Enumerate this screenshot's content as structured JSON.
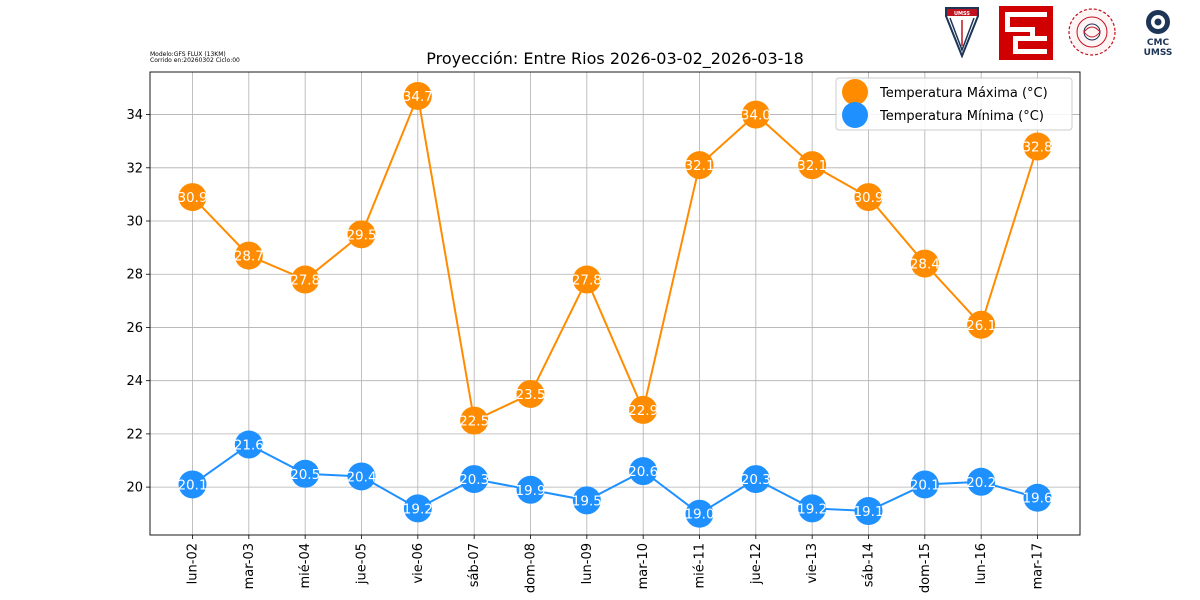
{
  "header": {
    "model_line": "Modelo:GFS FLUX (13KM)",
    "run_line": "Corrido en:20260302 Ciclo:00",
    "logos": [
      "umss-shield-logo",
      "red-square-logo",
      "circular-seal-logo",
      "cmc-umss-logo"
    ],
    "cmc_text": "CMC",
    "umss_text": "UMSS",
    "umss_shield_text": "UMSS"
  },
  "chart_data": {
    "type": "line",
    "title": "Proyección: Entre Rios 2026-03-02_2026-03-18",
    "xlabel": "",
    "ylabel": "",
    "categories": [
      "lun-02",
      "mar-03",
      "mié-04",
      "jue-05",
      "vie-06",
      "sáb-07",
      "dom-08",
      "lun-09",
      "mar-10",
      "mié-11",
      "jue-12",
      "vie-13",
      "sáb-14",
      "dom-15",
      "lun-16",
      "mar-17"
    ],
    "ylim": [
      18.2,
      35.6
    ],
    "yticks": [
      20,
      22,
      24,
      26,
      28,
      30,
      32,
      34
    ],
    "grid": true,
    "legend_position": "top-right",
    "series": [
      {
        "name": "Temperatura Máxima  (°C)",
        "color": "#ff8c00",
        "values": [
          30.9,
          28.7,
          27.8,
          29.5,
          34.7,
          22.5,
          23.5,
          27.8,
          22.9,
          32.1,
          34.0,
          32.1,
          30.9,
          28.4,
          26.1,
          32.8
        ]
      },
      {
        "name": "Temperatura Mínima  (°C)",
        "color": "#1e90ff",
        "values": [
          20.1,
          21.6,
          20.5,
          20.4,
          19.2,
          20.3,
          19.9,
          19.5,
          20.6,
          19.0,
          20.3,
          19.2,
          19.1,
          20.1,
          20.2,
          19.6
        ]
      }
    ]
  }
}
